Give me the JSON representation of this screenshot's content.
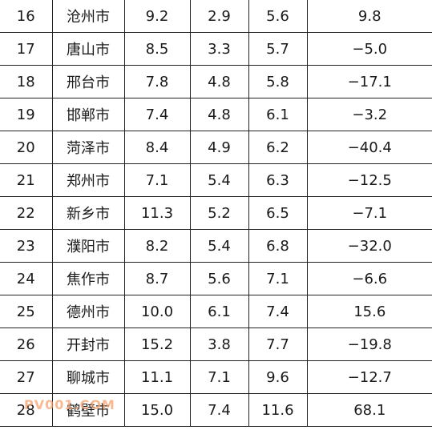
{
  "rows": [
    {
      "rank": "16",
      "city": "沧州市",
      "a": "9.2",
      "b": "2.9",
      "c": "5.6",
      "d": "9.8"
    },
    {
      "rank": "17",
      "city": "唐山市",
      "a": "8.5",
      "b": "3.3",
      "c": "5.7",
      "d": "−5.0"
    },
    {
      "rank": "18",
      "city": "邢台市",
      "a": "7.8",
      "b": "4.8",
      "c": "5.8",
      "d": "−17.1"
    },
    {
      "rank": "19",
      "city": "邯郸市",
      "a": "7.4",
      "b": "4.8",
      "c": "6.1",
      "d": "−3.2"
    },
    {
      "rank": "20",
      "city": "菏泽市",
      "a": "8.4",
      "b": "4.9",
      "c": "6.2",
      "d": "−40.4"
    },
    {
      "rank": "21",
      "city": "郑州市",
      "a": "7.1",
      "b": "5.4",
      "c": "6.3",
      "d": "−12.5"
    },
    {
      "rank": "22",
      "city": "新乡市",
      "a": "11.3",
      "b": "5.2",
      "c": "6.5",
      "d": "−7.1"
    },
    {
      "rank": "23",
      "city": "濮阳市",
      "a": "8.2",
      "b": "5.4",
      "c": "6.8",
      "d": "−32.0"
    },
    {
      "rank": "24",
      "city": "焦作市",
      "a": "8.7",
      "b": "5.6",
      "c": "7.1",
      "d": "−6.6"
    },
    {
      "rank": "25",
      "city": "德州市",
      "a": "10.0",
      "b": "6.1",
      "c": "7.4",
      "d": "15.6"
    },
    {
      "rank": "26",
      "city": "开封市",
      "a": "15.2",
      "b": "3.8",
      "c": "7.7",
      "d": "−19.8"
    },
    {
      "rank": "27",
      "city": "聊城市",
      "a": "11.1",
      "b": "7.1",
      "c": "9.6",
      "d": "−12.7"
    },
    {
      "rank": "28",
      "city": "鹤壁市",
      "a": "15.0",
      "b": "7.4",
      "c": "11.6",
      "d": "68.1"
    }
  ],
  "watermark": "PV001.COM"
}
